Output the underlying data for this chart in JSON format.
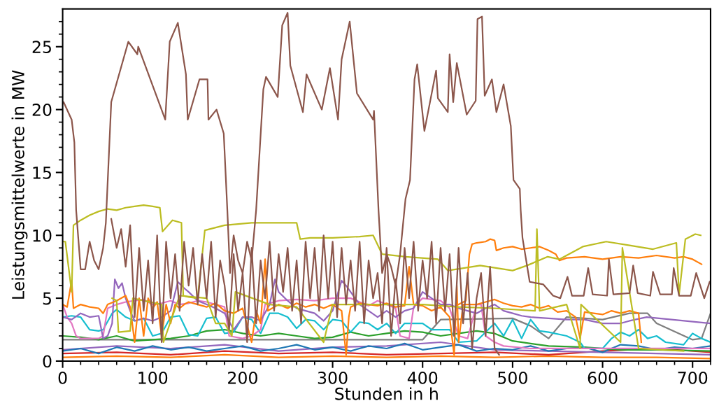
{
  "chart_data": {
    "type": "line",
    "xlabel": "Stunden in h",
    "ylabel": "Leistungsmittelwerte in MW",
    "xlim": [
      0,
      720
    ],
    "ylim": [
      0,
      28
    ],
    "xticks": [
      0,
      {
        "value": 20,
        "label": null
      },
      {
        "value": 40,
        "label": null
      },
      {
        "value": 60,
        "label": null
      },
      {
        "value": 80,
        "label": null
      },
      100,
      {
        "value": 120,
        "label": null
      },
      {
        "value": 140,
        "label": null
      },
      {
        "value": 160,
        "label": null
      },
      {
        "value": 180,
        "label": null
      },
      200,
      {
        "value": 220,
        "label": null
      },
      {
        "value": 240,
        "label": null
      },
      {
        "value": 260,
        "label": null
      },
      {
        "value": 280,
        "label": null
      },
      300,
      {
        "value": 320,
        "label": null
      },
      {
        "value": 340,
        "label": null
      },
      {
        "value": 360,
        "label": null
      },
      {
        "value": 380,
        "label": null
      },
      400,
      {
        "value": 420,
        "label": null
      },
      {
        "value": 440,
        "label": null
      },
      {
        "value": 460,
        "label": null
      },
      {
        "value": 480,
        "label": null
      },
      500,
      {
        "value": 520,
        "label": null
      },
      {
        "value": 540,
        "label": null
      },
      {
        "value": 560,
        "label": null
      },
      {
        "value": 580,
        "label": null
      },
      600,
      {
        "value": 620,
        "label": null
      },
      {
        "value": 640,
        "label": null
      },
      {
        "value": 660,
        "label": null
      },
      {
        "value": 680,
        "label": null
      },
      700,
      {
        "value": 720,
        "label": null
      }
    ],
    "yticks": [
      0,
      {
        "value": 1,
        "label": null
      },
      {
        "value": 2,
        "label": null
      },
      {
        "value": 3,
        "label": null
      },
      {
        "value": 4,
        "label": null
      },
      5,
      {
        "value": 6,
        "label": null
      },
      {
        "value": 7,
        "label": null
      },
      {
        "value": 8,
        "label": null
      },
      {
        "value": 9,
        "label": null
      },
      10,
      {
        "value": 11,
        "label": null
      },
      {
        "value": 12,
        "label": null
      },
      {
        "value": 13,
        "label": null
      },
      {
        "value": 14,
        "label": null
      },
      15,
      {
        "value": 16,
        "label": null
      },
      {
        "value": 17,
        "label": null
      },
      {
        "value": 18,
        "label": null
      },
      {
        "value": 19,
        "label": null
      },
      20,
      {
        "value": 21,
        "label": null
      },
      {
        "value": 22,
        "label": null
      },
      {
        "value": 23,
        "label": null
      },
      {
        "value": 24,
        "label": null
      },
      25,
      {
        "value": 26,
        "label": null
      },
      {
        "value": 27,
        "label": null
      }
    ],
    "marker": "none",
    "line_style": "solid",
    "series": [
      {
        "color": "#ff7f0e",
        "x": [
          0,
          60,
          120,
          180,
          240,
          300,
          360,
          420,
          480,
          540,
          600,
          660,
          720
        ],
        "values": [
          0.3,
          0.4,
          0.3,
          0.5,
          0.3,
          0.4,
          0.3,
          0.4,
          0.3,
          0.4,
          0.3,
          0.3,
          0.2
        ]
      },
      {
        "color": "#d62728",
        "x": [
          0,
          60,
          120,
          180,
          240,
          300,
          360,
          420,
          480,
          540,
          600,
          660,
          720
        ],
        "values": [
          0.6,
          0.7,
          0.5,
          0.8,
          0.6,
          0.7,
          0.5,
          0.6,
          0.7,
          0.5,
          0.8,
          1.0,
          0.7
        ]
      },
      {
        "color": "#9467bd",
        "x": [
          0,
          60,
          120,
          180,
          240,
          300,
          360,
          420,
          480,
          540,
          600,
          660,
          720
        ],
        "values": [
          0.9,
          1.2,
          1.0,
          1.3,
          0.8,
          1.1,
          1.2,
          1.5,
          0.9,
          0.8,
          0.7,
          0.6,
          0.5
        ]
      },
      {
        "color": "#1f77b4",
        "x": [
          0,
          20,
          40,
          60,
          80,
          100,
          120,
          140,
          160,
          180,
          200,
          220,
          240,
          260,
          280,
          300,
          320,
          340,
          360,
          380,
          400,
          420,
          440,
          460,
          480,
          500,
          520,
          540,
          560,
          580,
          600,
          620,
          640,
          660,
          680,
          700,
          720
        ],
        "values": [
          0.8,
          1.0,
          0.6,
          1.1,
          0.8,
          1.2,
          0.9,
          1.1,
          0.8,
          1.0,
          1.2,
          0.8,
          1.0,
          1.3,
          0.9,
          1.1,
          0.8,
          1.2,
          1.0,
          1.4,
          0.9,
          1.1,
          1.3,
          0.8,
          1.0,
          0.9,
          1.2,
          0.8,
          1.0,
          1.1,
          0.7,
          1.3,
          1.2,
          0.9,
          1.1,
          1.0,
          1.2
        ]
      },
      {
        "color": "#7f7f7f",
        "x": [
          0,
          100,
          200,
          300,
          400,
          420,
          500,
          520,
          540,
          560,
          600,
          630,
          650,
          660,
          700,
          710,
          720
        ],
        "values": [
          1.7,
          1.7,
          1.7,
          1.7,
          1.7,
          3.3,
          3.4,
          2.8,
          1.8,
          3.5,
          3.3,
          3.8,
          3.8,
          3.0,
          1.7,
          1.8,
          3.8
        ]
      },
      {
        "color": "#2ca02c",
        "x": [
          0,
          20,
          40,
          60,
          80,
          100,
          120,
          140,
          160,
          180,
          200,
          220,
          240,
          260,
          280,
          300,
          320,
          340,
          360,
          380,
          400,
          420,
          440,
          460,
          480,
          500,
          520,
          540,
          580,
          620,
          660,
          720
        ],
        "values": [
          2,
          1.9,
          1.7,
          2,
          1.6,
          1.7,
          1.8,
          2.0,
          2.4,
          2.5,
          2.2,
          2.0,
          2.2,
          2.0,
          1.8,
          1.9,
          2.3,
          2.0,
          2.2,
          2.4,
          2.3,
          2.0,
          2.2,
          2.4,
          2.2,
          1.6,
          1.4,
          1.2,
          1.1,
          0.9,
          0.9,
          0.8
        ]
      },
      {
        "color": "#17becf",
        "x": [
          0,
          10,
          20,
          30,
          40,
          45,
          55,
          60,
          70,
          80,
          90,
          100,
          110,
          120,
          130,
          140,
          150,
          160,
          170,
          180,
          190,
          200,
          210,
          220,
          230,
          240,
          250,
          260,
          270,
          280,
          290,
          300,
          310,
          320,
          330,
          340,
          350,
          360,
          370,
          380,
          400,
          410,
          430,
          440,
          460,
          480,
          490,
          500,
          510,
          520,
          530,
          540,
          560,
          575,
          580,
          600,
          610,
          620,
          630,
          640,
          650,
          660,
          670,
          690,
          700,
          710,
          720
        ],
        "values": [
          3.5,
          3.6,
          3.5,
          2.5,
          2.4,
          2.5,
          3.8,
          4.1,
          3.5,
          3.2,
          3.4,
          2,
          2.2,
          3.5,
          3.6,
          2.1,
          2,
          3.4,
          3.5,
          2.2,
          2.3,
          3.5,
          3.3,
          2.2,
          3.8,
          3.8,
          3.5,
          2.6,
          3.3,
          3.2,
          2.5,
          3.3,
          3.2,
          2.3,
          3.1,
          3.0,
          2.5,
          3.0,
          2.2,
          3.0,
          3.0,
          2.5,
          2.5,
          1.5,
          1.6,
          3,
          2.0,
          3.3,
          1.8,
          3.3,
          2.4,
          2.3,
          2.0,
          1.5,
          1.0,
          1.0,
          1.8,
          2.3,
          2.0,
          2.5,
          1.8,
          2.0,
          1.5,
          1.3,
          2.2,
          1.8,
          1.5
        ]
      },
      {
        "color": "#e377c2",
        "x": [
          0,
          5,
          10,
          15,
          20,
          30,
          40,
          45,
          50,
          60,
          70,
          80,
          90,
          100,
          110,
          120,
          130,
          140,
          150,
          160,
          170,
          180,
          185,
          200,
          210,
          220,
          225,
          240,
          260,
          280,
          300,
          320,
          330,
          340,
          350,
          360,
          370,
          375,
          385,
          390,
          400,
          420,
          430,
          440,
          450,
          460,
          465,
          470,
          480,
          490,
          520,
          600,
          720
        ],
        "values": [
          4.5,
          3.5,
          3,
          2,
          1.8,
          1.8,
          1.8,
          2,
          4.2,
          4.5,
          4.7,
          4.8,
          4.9,
          4.5,
          4.6,
          4.8,
          4.5,
          4.6,
          4.8,
          4.7,
          4.5,
          4.3,
          2,
          1.8,
          2,
          2.5,
          4.5,
          4.8,
          4.9,
          4.8,
          5,
          5,
          4.7,
          4.4,
          4.8,
          4.5,
          4.2,
          2,
          1.8,
          4.3,
          5,
          4.8,
          4.2,
          2,
          1.8,
          4.5,
          4.5,
          2,
          1.5,
          1.2,
          1.0,
          1.0,
          1.0
        ]
      },
      {
        "color": "#9467bd",
        "x": [
          0,
          10,
          20,
          30,
          40,
          45,
          50,
          55,
          58,
          62,
          66,
          70,
          75,
          80,
          90,
          100,
          110,
          120,
          128,
          135,
          140,
          150,
          160,
          170,
          180,
          190,
          200,
          210,
          220,
          230,
          236,
          240,
          250,
          260,
          270,
          280,
          290,
          300,
          310,
          315,
          320,
          330,
          340,
          350,
          360,
          370,
          380,
          390,
          400,
          410,
          420,
          430,
          440,
          450,
          460,
          470,
          480,
          490,
          500,
          510,
          520,
          540,
          560,
          580,
          600,
          620,
          630,
          649,
          720
        ],
        "values": [
          3.5,
          3.3,
          3.8,
          3.5,
          3.6,
          1.8,
          2,
          3,
          6.5,
          5.8,
          6.2,
          5,
          4,
          3.2,
          3.4,
          3.2,
          3.5,
          4,
          6.3,
          5.8,
          5.5,
          4.8,
          4.5,
          4.2,
          3.8,
          2.5,
          3.5,
          3.5,
          3.2,
          4.5,
          6.5,
          5.5,
          4.8,
          4.2,
          4.0,
          3.8,
          3.2,
          4,
          6.4,
          6,
          5.5,
          4.5,
          4,
          3.5,
          4,
          3.5,
          4,
          4.2,
          5.5,
          5,
          4.5,
          4.5,
          4.2,
          4,
          3.8,
          4.2,
          4.5,
          4.0,
          3.8,
          3.6,
          3.5,
          3.4,
          3.3,
          3.3,
          3.0,
          3.0,
          3.2,
          3.5,
          3.0
        ]
      },
      {
        "color": "#ff7f0e",
        "x": [
          0,
          5,
          10,
          12,
          20,
          30,
          40,
          45,
          50,
          60,
          70,
          75,
          80,
          85,
          90,
          95,
          100,
          105,
          110,
          115,
          120,
          125,
          130,
          135,
          140,
          150,
          160,
          170,
          180,
          190,
          200,
          210,
          215,
          220,
          225,
          228,
          240,
          250,
          260,
          270,
          280,
          290,
          300,
          310,
          315,
          318,
          320,
          330,
          340,
          350,
          360,
          370,
          380,
          385,
          390,
          400,
          410,
          420,
          430,
          435,
          438,
          440,
          445,
          460,
          470,
          480,
          490,
          500,
          510,
          520,
          530,
          540,
          550,
          560,
          570,
          575,
          580,
          590,
          600,
          610,
          620,
          630,
          640,
          643
        ],
        "values": [
          4.5,
          4.3,
          6.4,
          4.2,
          4.5,
          4.3,
          4.2,
          3.8,
          4.5,
          4.8,
          5.2,
          4.3,
          1.5,
          5,
          2,
          5,
          4.2,
          4.7,
          2,
          4.5,
          3,
          4.5,
          4.2,
          4.5,
          4.7,
          4.5,
          4.3,
          4.6,
          4,
          3.8,
          4.2,
          1.5,
          4,
          3,
          8.1,
          4,
          4.5,
          4.2,
          4.6,
          4.3,
          4.5,
          4.2,
          4.5,
          4,
          0.5,
          3.5,
          4.3,
          4.6,
          4.5,
          4.4,
          4.6,
          4.3,
          4.4,
          7.5,
          4.5,
          4.4,
          4,
          4.3,
          3.5,
          0.5,
          6,
          1.5,
          4.5,
          4.5,
          4.7,
          4.9,
          4.6,
          4.4,
          4.3,
          4.5,
          4.2,
          4.4,
          3.9,
          4,
          3.5,
          1.8,
          3.9,
          3.8,
          3.7,
          4.0,
          3.8,
          4.0,
          3.8,
          1.5
        ]
      },
      {
        "color": "#ff7f0e",
        "x": [
          440,
          448,
          452,
          455,
          460,
          470,
          475,
          480,
          482,
          490,
          500,
          510,
          520,
          530,
          540,
          548,
          552,
          560,
          580,
          600,
          620,
          640,
          660,
          680,
          690,
          700,
          710
        ],
        "values": [
          4.5,
          4.8,
          8.5,
          9.3,
          9.4,
          9.5,
          9.7,
          9.6,
          8.8,
          9.0,
          9.1,
          8.9,
          9.0,
          9.1,
          8.8,
          8.5,
          8.0,
          8.2,
          8.3,
          8.1,
          8.3,
          8.2,
          8.4,
          8.2,
          8.3,
          8.1,
          7.7
        ]
      },
      {
        "color": "#bcbd22",
        "x": [
          55,
          60,
          62,
          75,
          78,
          90,
          110,
          112,
          130,
          160,
          170,
          180,
          188,
          192,
          230,
          260,
          290,
          300,
          340,
          400,
          440,
          480,
          525,
          527,
          530,
          560,
          575,
          576,
          620,
          622,
          640,
          690
        ],
        "values": [
          5,
          4.8,
          2.3,
          2.4,
          5,
          4.8,
          4.5,
          1.5,
          5.2,
          5,
          3,
          3,
          2,
          5.5,
          4.5,
          4.3,
          1.5,
          4.5,
          4.5,
          4.5,
          4.3,
          4.2,
          4,
          10.5,
          4,
          4.5,
          1,
          4.5,
          1.5,
          9,
          1,
          0.8
        ]
      },
      {
        "color": "#bcbd22",
        "x": [
          0,
          3,
          10,
          12,
          20,
          30,
          40,
          50,
          60,
          70,
          80,
          90,
          100,
          108,
          111,
          122,
          132,
          134,
          140,
          150,
          158,
          180,
          210,
          260,
          264,
          275,
          300,
          330,
          345,
          355,
          381,
          417,
          428,
          464,
          500,
          516,
          539,
          552,
          578,
          604,
          630,
          656,
          682,
          685,
          692,
          703,
          709
        ],
        "values": [
          9.5,
          9.5,
          5.5,
          10.8,
          11.2,
          11.6,
          11.9,
          12.1,
          12,
          12.2,
          12.3,
          12.4,
          12.3,
          12.2,
          10.3,
          11.2,
          11,
          5.2,
          5.1,
          5,
          10.4,
          10.8,
          11,
          11,
          9.7,
          9.8,
          9.8,
          9.9,
          10,
          8.5,
          8.3,
          8.1,
          7.2,
          7.6,
          7.2,
          7.6,
          8.3,
          8.1,
          9.1,
          9.5,
          9.2,
          8.9,
          9.4,
          5.3,
          9.7,
          10.1,
          10
        ]
      },
      {
        "color": "#8c564b",
        "x": [
          54,
          60,
          65,
          70,
          75,
          80,
          85,
          90,
          95,
          100,
          105,
          110,
          115,
          120,
          125,
          130,
          135,
          140,
          145,
          150,
          155,
          160,
          165,
          170,
          175,
          180,
          185,
          190,
          195,
          200,
          205,
          210,
          215,
          220,
          225,
          230,
          235,
          240,
          245,
          250,
          255,
          260,
          265,
          270,
          275,
          280,
          285,
          290,
          295,
          300,
          305,
          310,
          315,
          320,
          325,
          330,
          335,
          340,
          345,
          350,
          355,
          360,
          365,
          370,
          375,
          380,
          385,
          390,
          395,
          400,
          405,
          410,
          415,
          420,
          425,
          430,
          435,
          440,
          445,
          450,
          455,
          460,
          465,
          470,
          475,
          480,
          485
        ],
        "values": [
          11.3,
          9,
          10.5,
          7.5,
          10.8,
          3.5,
          9,
          4,
          8,
          3,
          10,
          1.5,
          9.5,
          5,
          8.5,
          4,
          9.5,
          6,
          9,
          4.5,
          8.5,
          5,
          9.5,
          3.5,
          8,
          6,
          2.5,
          8.5,
          4,
          7,
          1.5,
          9,
          3,
          8,
          5,
          9.5,
          4,
          8.5,
          5.5,
          9,
          4,
          8,
          3,
          9.5,
          5,
          9,
          4,
          10,
          5,
          9.5,
          3.5,
          9,
          4.5,
          8,
          4,
          9.5,
          3,
          8,
          5,
          7,
          3,
          9,
          2,
          6.5,
          3,
          9,
          5,
          9.5,
          4,
          8,
          5,
          9.5,
          3,
          9,
          4,
          8.5,
          2,
          9,
          3,
          7,
          1,
          5,
          7,
          2,
          7.5,
          1,
          0.5
        ]
      },
      {
        "color": "#8c564b",
        "x": [
          0,
          1,
          10,
          13,
          15,
          20,
          25,
          30,
          35,
          40,
          45,
          48,
          54,
          73,
          83,
          84,
          114,
          119,
          128,
          137,
          139,
          152,
          161,
          162,
          171,
          179,
          183,
          186,
          190,
          195,
          200,
          205,
          210,
          215,
          223,
          226,
          239,
          244,
          250,
          253,
          267,
          271,
          288,
          297,
          306,
          310,
          319,
          327,
          345,
          346,
          351,
          355,
          360,
          365,
          370,
          375,
          381,
          386,
          391,
          394,
          402,
          415,
          417,
          428,
          430,
          434,
          438,
          449,
          459,
          461,
          466,
          469,
          477,
          482,
          490,
          498,
          501,
          508,
          509,
          511,
          519,
          534,
          545,
          553,
          561,
          566,
          579,
          584,
          589,
          605,
          607,
          612,
          630,
          634,
          639,
          653,
          656,
          664,
          677,
          679,
          685,
          698,
          704,
          713,
          719
        ],
        "values": [
          20.5,
          20.6,
          19.2,
          17.4,
          12,
          7.3,
          7.3,
          9.5,
          8,
          7.3,
          9,
          11,
          20.6,
          25.4,
          24.4,
          25,
          19.2,
          25.4,
          26.9,
          22.8,
          19.2,
          22.4,
          22.4,
          19.2,
          20,
          18.1,
          12,
          7,
          10,
          8,
          7,
          9.5,
          8,
          12,
          21.6,
          22.6,
          21,
          26.7,
          27.7,
          23.5,
          19.8,
          22.8,
          20,
          23.3,
          19.2,
          24,
          27,
          21.3,
          19.2,
          19.9,
          12,
          7,
          8.5,
          7.5,
          6,
          8.5,
          12.9,
          14.4,
          22.4,
          23.6,
          18.3,
          23.1,
          20.9,
          19.8,
          24.4,
          20.6,
          23.7,
          19.6,
          20.7,
          27.2,
          27.4,
          21.1,
          22.4,
          19.8,
          22,
          18.7,
          14.4,
          13.7,
          12,
          9.8,
          6.3,
          6.1,
          5.2,
          5.0,
          6.7,
          5.2,
          5.2,
          7.4,
          5.3,
          5.2,
          8.1,
          5.3,
          5.4,
          7.6,
          5.4,
          5.2,
          7.1,
          5.3,
          5.3,
          7.4,
          5.2,
          5.2,
          7,
          5,
          6.3
        ]
      }
    ]
  }
}
